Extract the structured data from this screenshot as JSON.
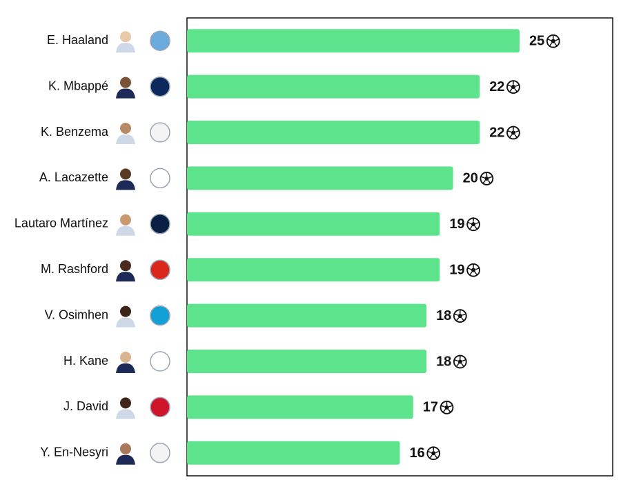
{
  "chart_data": {
    "type": "bar",
    "orientation": "horizontal",
    "categories": [
      "E. Haaland",
      "K. Mbappé",
      "K. Benzema",
      "A. Lacazette",
      "Lautaro Martínez",
      "M. Rashford",
      "V. Osimhen",
      "H. Kane",
      "J. David",
      "Y. En-Nesyri"
    ],
    "values": [
      25,
      22,
      22,
      20,
      19,
      19,
      18,
      18,
      17,
      16
    ],
    "color": "#5ce38c",
    "xlim": [
      0,
      32
    ]
  }
}
